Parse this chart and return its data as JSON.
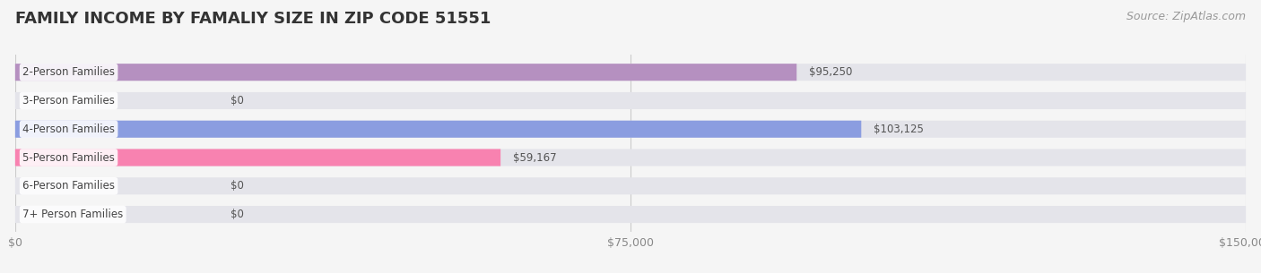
{
  "title": "FAMILY INCOME BY FAMALIY SIZE IN ZIP CODE 51551",
  "source": "Source: ZipAtlas.com",
  "categories": [
    "2-Person Families",
    "3-Person Families",
    "4-Person Families",
    "5-Person Families",
    "6-Person Families",
    "7+ Person Families"
  ],
  "values": [
    95250,
    0,
    103125,
    59167,
    0,
    0
  ],
  "bar_colors": [
    "#b590c0",
    "#5ecfc5",
    "#8b9de0",
    "#f882b0",
    "#f8ca95",
    "#f8a8a8"
  ],
  "value_labels": [
    "$95,250",
    "$0",
    "$103,125",
    "$59,167",
    "$0",
    "$0"
  ],
  "xlim": [
    0,
    150000
  ],
  "xticks": [
    0,
    75000,
    150000
  ],
  "xtick_labels": [
    "$0",
    "$75,000",
    "$150,000"
  ],
  "background_color": "#f5f5f5",
  "bar_background_color": "#e4e4ea",
  "title_fontsize": 13,
  "source_fontsize": 9,
  "label_fontsize": 8.5,
  "value_fontsize": 8.5
}
